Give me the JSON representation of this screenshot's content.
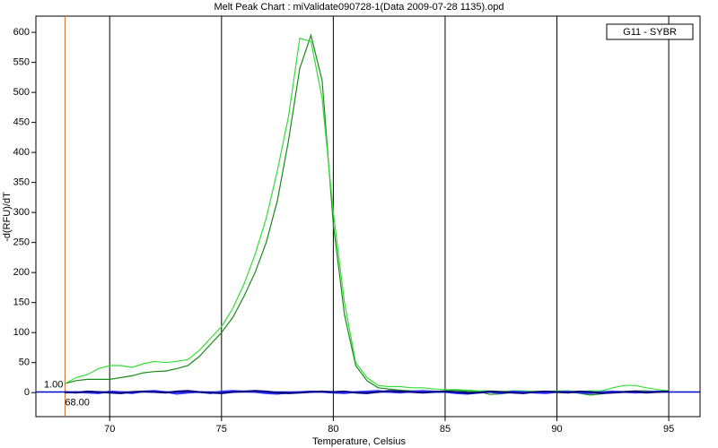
{
  "chart_data": {
    "type": "line",
    "title": "Melt Peak Chart : miValidate090728-1(Data 2009-07-28 1135).opd",
    "x_label": "Temperature, Celsius",
    "y_label": "-d(RFU)/dT",
    "legend_label": "G11 - SYBR",
    "marker": {
      "value": 68,
      "label": "68.00",
      "color": "#d2691e"
    },
    "threshold": {
      "value": 1,
      "label": "1.00"
    },
    "grid": true,
    "xlim": [
      66.7,
      96.4
    ],
    "ylim": [
      -40,
      627
    ],
    "xticks": [
      70,
      75,
      80,
      85,
      90,
      95
    ],
    "yticks": [
      0,
      50,
      100,
      150,
      200,
      250,
      300,
      350,
      400,
      450,
      500,
      550,
      600
    ],
    "x": [
      68,
      68.5,
      69,
      69.5,
      70,
      70.5,
      71,
      71.5,
      72,
      72.5,
      73,
      73.5,
      74,
      74.5,
      75,
      75.5,
      76,
      76.5,
      77,
      77.5,
      78,
      78.5,
      79,
      79.5,
      80,
      80.5,
      81,
      81.5,
      82,
      82.5,
      83,
      83.5,
      84,
      84.5,
      85,
      85.5,
      86,
      86.5,
      87,
      87.5,
      88,
      88.5,
      89,
      89.5,
      90,
      90.5,
      91,
      91.5,
      92,
      92.5,
      93,
      93.5,
      94,
      94.5,
      95
    ],
    "series": [
      {
        "color": "#1a8a1a",
        "values": [
          15,
          20,
          22,
          22,
          22,
          25,
          28,
          33,
          35,
          36,
          40,
          45,
          60,
          80,
          100,
          125,
          160,
          200,
          250,
          320,
          420,
          540,
          595,
          520,
          280,
          130,
          45,
          20,
          8,
          6,
          4,
          3,
          3,
          2,
          3,
          4,
          2,
          2,
          -3,
          -2,
          0,
          1,
          1,
          2,
          0,
          1,
          -1,
          -4,
          -2,
          1,
          2,
          3,
          3,
          2,
          2
        ]
      },
      {
        "color": "#33dd33",
        "values": [
          15,
          25,
          30,
          40,
          45,
          45,
          42,
          48,
          52,
          50,
          52,
          55,
          70,
          90,
          110,
          140,
          180,
          230,
          290,
          370,
          460,
          590,
          585,
          490,
          300,
          150,
          50,
          25,
          12,
          10,
          10,
          8,
          8,
          6,
          5,
          5,
          4,
          3,
          3,
          2,
          3,
          3,
          2,
          2,
          3,
          3,
          2,
          3,
          3,
          8,
          12,
          12,
          8,
          5,
          3
        ]
      },
      {
        "color": "#3333ff",
        "values": [
          0,
          1,
          0,
          -1,
          2,
          1,
          -1,
          2,
          3,
          1,
          -2,
          0,
          1,
          -1,
          2,
          3,
          2,
          1,
          -1,
          -2,
          0,
          1,
          2,
          1,
          0,
          -1,
          1,
          2,
          3,
          1,
          0,
          2,
          3,
          2,
          1,
          -1,
          -2,
          0,
          1,
          -1,
          2,
          1,
          0,
          -1,
          1,
          2,
          0,
          -1,
          1,
          2,
          1,
          0,
          1,
          2,
          1
        ]
      },
      {
        "color": "#000080",
        "values": [
          1,
          0,
          2,
          1,
          0,
          -1,
          1,
          2,
          1,
          0,
          2,
          3,
          1,
          0,
          -1,
          1,
          2,
          3,
          2,
          0,
          -1,
          0,
          1,
          2,
          1,
          2,
          0,
          -1,
          1,
          3,
          2,
          1,
          0,
          1,
          2,
          1,
          -1,
          0,
          2,
          1,
          0,
          -1,
          1,
          2,
          1,
          0,
          2,
          1,
          -1,
          0,
          1,
          2,
          0,
          1,
          2
        ]
      }
    ]
  }
}
